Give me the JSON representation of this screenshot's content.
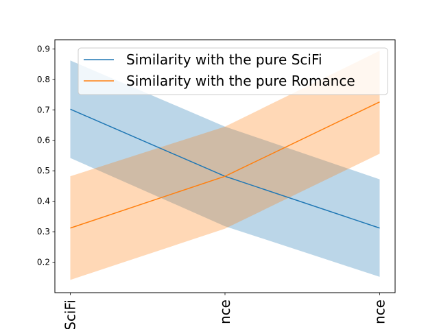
{
  "chart_data": {
    "type": "line",
    "categories": [
      "Pure SciFi",
      "Balanced SciFi/Romance",
      "Pure Romance"
    ],
    "visible_category_fragments": [
      "SciFi",
      "nce",
      "nce"
    ],
    "series": [
      {
        "name": "Similarity with the pure SciFi",
        "color": "#1f77b4",
        "band_color": "#1f77b4",
        "values": [
          0.702,
          0.482,
          0.312
        ],
        "lower": [
          0.542,
          0.318,
          0.152
        ],
        "upper": [
          0.862,
          0.645,
          0.472
        ]
      },
      {
        "name": "Similarity with the pure Romance",
        "color": "#ff7f0e",
        "band_color": "#ff7f0e",
        "values": [
          0.312,
          0.482,
          0.726
        ],
        "lower": [
          0.142,
          0.31,
          0.556
        ],
        "upper": [
          0.482,
          0.645,
          0.894
        ]
      }
    ],
    "ylim": [
      0.1,
      0.93
    ],
    "yticks": [
      0.2,
      0.3,
      0.4,
      0.5,
      0.6,
      0.7,
      0.8,
      0.9
    ],
    "xlabel": "",
    "ylabel": "",
    "title": "",
    "grid": false,
    "legend_position": "top-right"
  }
}
